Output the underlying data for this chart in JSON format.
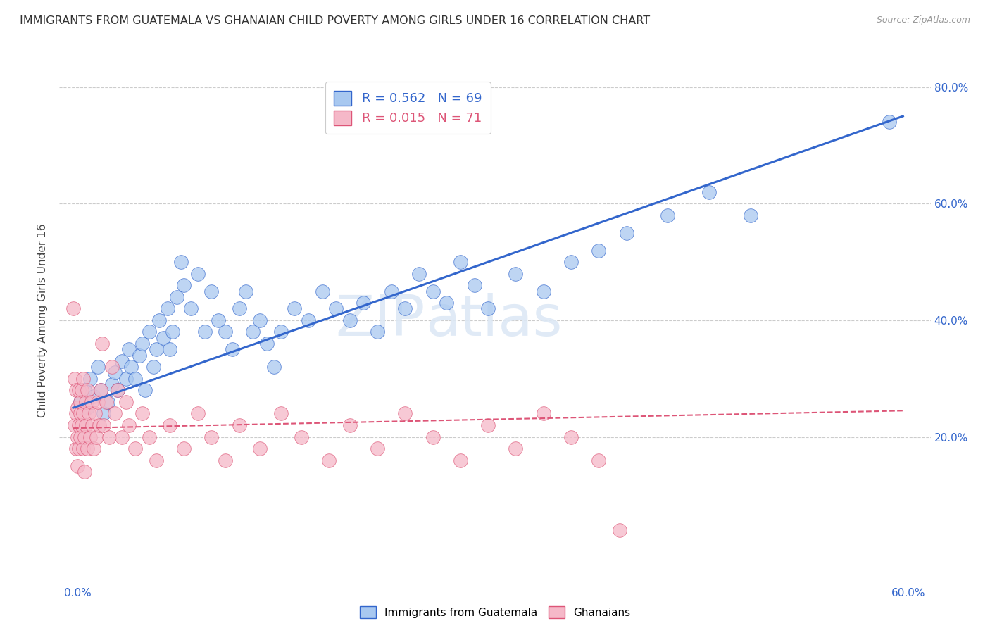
{
  "title": "IMMIGRANTS FROM GUATEMALA VS GHANAIAN CHILD POVERTY AMONG GIRLS UNDER 16 CORRELATION CHART",
  "source": "Source: ZipAtlas.com",
  "ylabel": "Child Poverty Among Girls Under 16",
  "legend_label1": "Immigrants from Guatemala",
  "legend_label2": "Ghanaians",
  "R1": 0.562,
  "N1": 69,
  "R2": 0.015,
  "N2": 71,
  "xlim": [
    -0.01,
    0.62
  ],
  "ylim": [
    -0.02,
    0.82
  ],
  "yticks": [
    0.0,
    0.2,
    0.4,
    0.6,
    0.8
  ],
  "ytick_labels_right": [
    "",
    "20.0%",
    "40.0%",
    "60.0%",
    "80.0%"
  ],
  "color_blue": "#a8c8f0",
  "color_pink": "#f5b8c8",
  "line_color_blue": "#3366cc",
  "line_color_pink": "#dd5577",
  "grid_color": "#cccccc",
  "background_color": "#ffffff",
  "watermark_zip": "ZIP",
  "watermark_atlas": "atlas",
  "title_fontsize": 11.5,
  "axis_label_fontsize": 11,
  "tick_fontsize": 11,
  "legend_fontsize": 13,
  "blue_x": [
    0.005,
    0.008,
    0.01,
    0.012,
    0.015,
    0.018,
    0.02,
    0.022,
    0.025,
    0.028,
    0.03,
    0.032,
    0.035,
    0.038,
    0.04,
    0.042,
    0.045,
    0.048,
    0.05,
    0.052,
    0.055,
    0.058,
    0.06,
    0.062,
    0.065,
    0.068,
    0.07,
    0.072,
    0.075,
    0.078,
    0.08,
    0.085,
    0.09,
    0.095,
    0.1,
    0.105,
    0.11,
    0.115,
    0.12,
    0.125,
    0.13,
    0.135,
    0.14,
    0.145,
    0.15,
    0.16,
    0.17,
    0.18,
    0.19,
    0.2,
    0.21,
    0.22,
    0.23,
    0.24,
    0.25,
    0.26,
    0.27,
    0.28,
    0.29,
    0.3,
    0.32,
    0.34,
    0.36,
    0.38,
    0.4,
    0.43,
    0.46,
    0.49,
    0.59
  ],
  "blue_y": [
    0.26,
    0.28,
    0.25,
    0.3,
    0.27,
    0.32,
    0.28,
    0.24,
    0.26,
    0.29,
    0.31,
    0.28,
    0.33,
    0.3,
    0.35,
    0.32,
    0.3,
    0.34,
    0.36,
    0.28,
    0.38,
    0.32,
    0.35,
    0.4,
    0.37,
    0.42,
    0.35,
    0.38,
    0.44,
    0.5,
    0.46,
    0.42,
    0.48,
    0.38,
    0.45,
    0.4,
    0.38,
    0.35,
    0.42,
    0.45,
    0.38,
    0.4,
    0.36,
    0.32,
    0.38,
    0.42,
    0.4,
    0.45,
    0.42,
    0.4,
    0.43,
    0.38,
    0.45,
    0.42,
    0.48,
    0.45,
    0.43,
    0.5,
    0.46,
    0.42,
    0.48,
    0.45,
    0.5,
    0.52,
    0.55,
    0.58,
    0.62,
    0.58,
    0.74
  ],
  "pink_x": [
    0.0,
    0.001,
    0.001,
    0.002,
    0.002,
    0.002,
    0.003,
    0.003,
    0.003,
    0.004,
    0.004,
    0.004,
    0.005,
    0.005,
    0.005,
    0.006,
    0.006,
    0.007,
    0.007,
    0.007,
    0.008,
    0.008,
    0.009,
    0.009,
    0.01,
    0.01,
    0.011,
    0.012,
    0.013,
    0.014,
    0.015,
    0.016,
    0.017,
    0.018,
    0.019,
    0.02,
    0.021,
    0.022,
    0.024,
    0.026,
    0.028,
    0.03,
    0.032,
    0.035,
    0.038,
    0.04,
    0.045,
    0.05,
    0.055,
    0.06,
    0.07,
    0.08,
    0.09,
    0.1,
    0.11,
    0.12,
    0.135,
    0.15,
    0.165,
    0.185,
    0.2,
    0.22,
    0.24,
    0.26,
    0.28,
    0.3,
    0.32,
    0.34,
    0.36,
    0.38,
    0.395
  ],
  "pink_y": [
    0.42,
    0.22,
    0.3,
    0.18,
    0.24,
    0.28,
    0.2,
    0.25,
    0.15,
    0.22,
    0.28,
    0.18,
    0.24,
    0.2,
    0.26,
    0.22,
    0.28,
    0.18,
    0.24,
    0.3,
    0.2,
    0.14,
    0.26,
    0.22,
    0.18,
    0.28,
    0.24,
    0.2,
    0.26,
    0.22,
    0.18,
    0.24,
    0.2,
    0.26,
    0.22,
    0.28,
    0.36,
    0.22,
    0.26,
    0.2,
    0.32,
    0.24,
    0.28,
    0.2,
    0.26,
    0.22,
    0.18,
    0.24,
    0.2,
    0.16,
    0.22,
    0.18,
    0.24,
    0.2,
    0.16,
    0.22,
    0.18,
    0.24,
    0.2,
    0.16,
    0.22,
    0.18,
    0.24,
    0.2,
    0.16,
    0.22,
    0.18,
    0.24,
    0.2,
    0.16,
    0.04
  ]
}
